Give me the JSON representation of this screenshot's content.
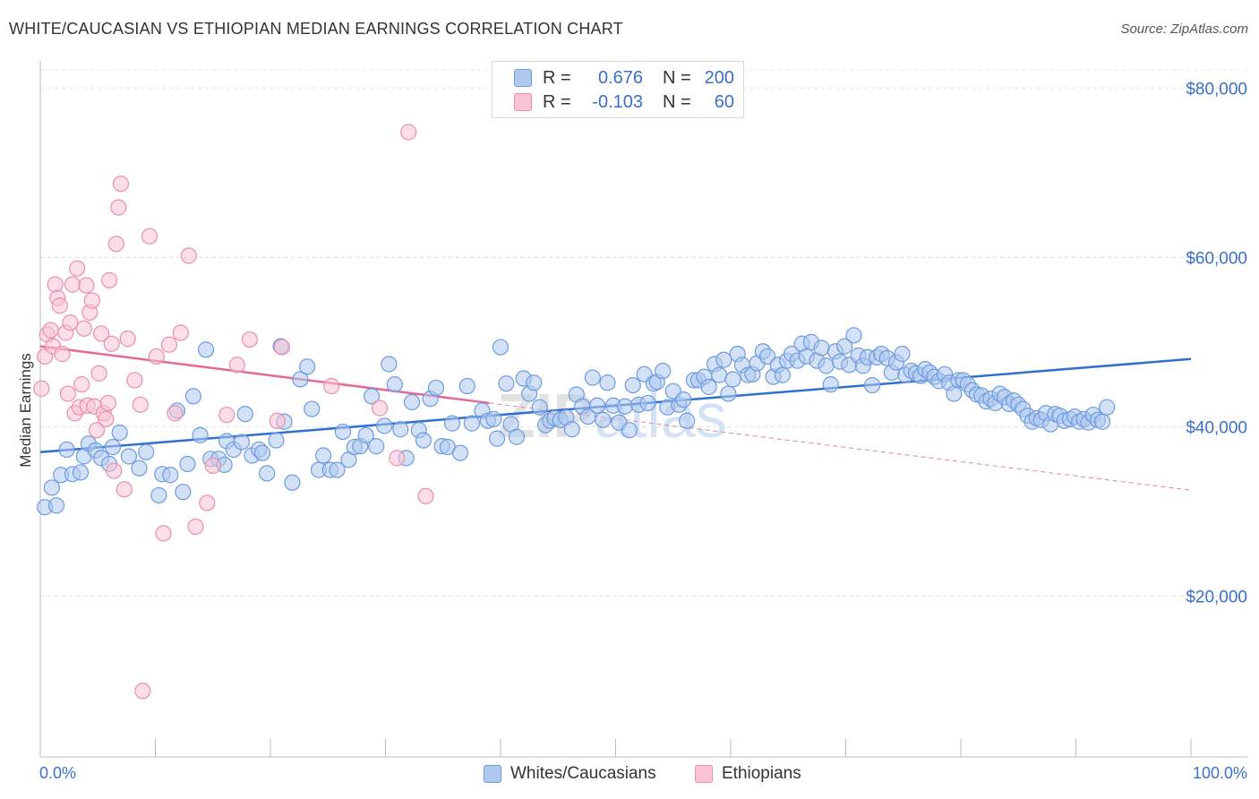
{
  "title": "WHITE/CAUCASIAN VS ETHIOPIAN MEDIAN EARNINGS CORRELATION CHART",
  "source": "Source: ZipAtlas.com",
  "watermark": "ZIPatlas",
  "legend": {
    "r_label": "R =",
    "n_label": "N =",
    "rows": [
      {
        "r": "0.676",
        "n": "200",
        "color": "#aec8ee",
        "border": "#6d9be0"
      },
      {
        "r": "-0.103",
        "n": "60",
        "color": "#f8c3d3",
        "border": "#ea8fac"
      }
    ]
  },
  "bottom_legend": [
    {
      "label": "Whites/Caucasians",
      "color": "#aec8ee",
      "border": "#6d9be0"
    },
    {
      "label": "Ethiopians",
      "color": "#f8c3d3",
      "border": "#ea8fac"
    }
  ],
  "chart_data": {
    "type": "scatter",
    "title": "WHITE/CAUCASIAN VS ETHIOPIAN MEDIAN EARNINGS CORRELATION CHART",
    "xlabel": "",
    "ylabel": "Median Earnings",
    "xlim": [
      0,
      100
    ],
    "ylim": [
      1000,
      83000
    ],
    "x_tick_labels": [
      "0.0%",
      "100.0%"
    ],
    "y_ticks": [
      20000,
      40000,
      60000,
      80000
    ],
    "y_tick_labels": [
      "$20,000",
      "$40,000",
      "$60,000",
      "$80,000"
    ],
    "grid": true,
    "legend_position": "top-center",
    "series": [
      {
        "name": "Whites/Caucasians",
        "color": "#6d9be0",
        "fill": "#aec8ee",
        "r": 0.676,
        "n": 200,
        "trend": {
          "x": [
            0,
            100
          ],
          "y": [
            37000,
            48000
          ]
        },
        "points": [
          [
            0.4,
            30500
          ],
          [
            1.4,
            30700
          ],
          [
            1.0,
            32800
          ],
          [
            1.8,
            34300
          ],
          [
            2.3,
            37300
          ],
          [
            2.8,
            34400
          ],
          [
            3.5,
            34600
          ],
          [
            3.8,
            36500
          ],
          [
            4.2,
            38000
          ],
          [
            4.8,
            37200
          ],
          [
            5.3,
            36300
          ],
          [
            6.0,
            35600
          ],
          [
            6.3,
            37600
          ],
          [
            6.9,
            39300
          ],
          [
            7.7,
            36500
          ],
          [
            8.6,
            35100
          ],
          [
            9.2,
            37000
          ],
          [
            10.3,
            31900
          ],
          [
            10.6,
            34400
          ],
          [
            11.3,
            34300
          ],
          [
            11.9,
            41900
          ],
          [
            12.4,
            32300
          ],
          [
            12.8,
            35600
          ],
          [
            13.3,
            43600
          ],
          [
            13.9,
            39000
          ],
          [
            14.4,
            49100
          ],
          [
            14.8,
            36200
          ],
          [
            15.5,
            36200
          ],
          [
            16.0,
            35500
          ],
          [
            16.2,
            38300
          ],
          [
            16.8,
            37300
          ],
          [
            17.5,
            38200
          ],
          [
            17.8,
            41500
          ],
          [
            18.4,
            36600
          ],
          [
            19.0,
            37300
          ],
          [
            19.3,
            36900
          ],
          [
            19.7,
            34500
          ],
          [
            20.5,
            38400
          ],
          [
            20.9,
            49500
          ],
          [
            21.2,
            40600
          ],
          [
            21.9,
            33400
          ],
          [
            22.6,
            45600
          ],
          [
            23.2,
            47100
          ],
          [
            23.6,
            42100
          ],
          [
            24.2,
            34900
          ],
          [
            24.6,
            36600
          ],
          [
            25.2,
            34900
          ],
          [
            25.8,
            34900
          ],
          [
            26.3,
            39400
          ],
          [
            26.8,
            36100
          ],
          [
            27.3,
            37600
          ],
          [
            27.8,
            37700
          ],
          [
            28.3,
            39000
          ],
          [
            28.8,
            43600
          ],
          [
            29.2,
            37700
          ],
          [
            29.9,
            40100
          ],
          [
            30.3,
            47400
          ],
          [
            30.8,
            45000
          ],
          [
            31.3,
            39700
          ],
          [
            31.8,
            36300
          ],
          [
            32.3,
            42900
          ],
          [
            32.9,
            39600
          ],
          [
            33.3,
            38400
          ],
          [
            33.9,
            43300
          ],
          [
            34.4,
            44600
          ],
          [
            34.9,
            37700
          ],
          [
            35.4,
            37600
          ],
          [
            35.8,
            40400
          ],
          [
            36.5,
            36900
          ],
          [
            37.1,
            44800
          ],
          [
            37.5,
            40400
          ],
          [
            38.4,
            41900
          ],
          [
            38.9,
            40700
          ],
          [
            39.4,
            40900
          ],
          [
            39.7,
            38600
          ],
          [
            40.0,
            49400
          ],
          [
            40.5,
            45100
          ],
          [
            40.9,
            40300
          ],
          [
            41.4,
            38800
          ],
          [
            42.0,
            45700
          ],
          [
            42.5,
            43900
          ],
          [
            42.9,
            45200
          ],
          [
            43.4,
            42300
          ],
          [
            43.9,
            40200
          ],
          [
            44.3,
            40700
          ],
          [
            44.7,
            41000
          ],
          [
            45.2,
            40800
          ],
          [
            45.7,
            41100
          ],
          [
            46.2,
            39700
          ],
          [
            46.6,
            43800
          ],
          [
            47.1,
            42400
          ],
          [
            47.6,
            41200
          ],
          [
            48.0,
            45800
          ],
          [
            48.4,
            42500
          ],
          [
            48.9,
            40800
          ],
          [
            49.3,
            45200
          ],
          [
            49.8,
            42500
          ],
          [
            50.3,
            40500
          ],
          [
            50.8,
            42400
          ],
          [
            51.2,
            39600
          ],
          [
            51.5,
            44900
          ],
          [
            52.0,
            42600
          ],
          [
            52.5,
            46200
          ],
          [
            52.8,
            42800
          ],
          [
            53.3,
            45100
          ],
          [
            53.6,
            45300
          ],
          [
            54.1,
            46600
          ],
          [
            54.5,
            42300
          ],
          [
            55.0,
            44200
          ],
          [
            55.5,
            42600
          ],
          [
            55.9,
            43200
          ],
          [
            56.2,
            40700
          ],
          [
            56.8,
            45500
          ],
          [
            57.2,
            45500
          ],
          [
            57.7,
            45900
          ],
          [
            58.1,
            44700
          ],
          [
            58.6,
            47400
          ],
          [
            59.0,
            46100
          ],
          [
            59.4,
            47900
          ],
          [
            59.8,
            43900
          ],
          [
            60.2,
            45600
          ],
          [
            60.6,
            48600
          ],
          [
            61.0,
            47300
          ],
          [
            61.5,
            46100
          ],
          [
            61.9,
            46200
          ],
          [
            62.3,
            47500
          ],
          [
            62.8,
            48900
          ],
          [
            63.2,
            48300
          ],
          [
            63.7,
            45900
          ],
          [
            64.1,
            47300
          ],
          [
            64.5,
            46100
          ],
          [
            64.9,
            47800
          ],
          [
            65.3,
            48600
          ],
          [
            65.8,
            47800
          ],
          [
            66.2,
            49800
          ],
          [
            66.6,
            48300
          ],
          [
            67.0,
            50000
          ],
          [
            67.5,
            47800
          ],
          [
            67.9,
            49300
          ],
          [
            68.3,
            47200
          ],
          [
            68.7,
            45000
          ],
          [
            69.1,
            48900
          ],
          [
            69.5,
            47700
          ],
          [
            69.9,
            49500
          ],
          [
            70.3,
            47300
          ],
          [
            70.7,
            50800
          ],
          [
            71.1,
            48400
          ],
          [
            71.5,
            47200
          ],
          [
            71.9,
            48200
          ],
          [
            72.3,
            44900
          ],
          [
            72.7,
            48200
          ],
          [
            73.1,
            48600
          ],
          [
            73.6,
            48100
          ],
          [
            74.0,
            46400
          ],
          [
            74.4,
            47600
          ],
          [
            74.9,
            48600
          ],
          [
            75.2,
            46100
          ],
          [
            75.7,
            46600
          ],
          [
            76.1,
            46300
          ],
          [
            76.5,
            46000
          ],
          [
            76.9,
            46800
          ],
          [
            77.3,
            46400
          ],
          [
            77.7,
            45900
          ],
          [
            78.1,
            45400
          ],
          [
            78.6,
            46200
          ],
          [
            79.0,
            45200
          ],
          [
            79.4,
            43900
          ],
          [
            79.8,
            45500
          ],
          [
            80.2,
            45500
          ],
          [
            80.6,
            45000
          ],
          [
            81.0,
            44300
          ],
          [
            81.4,
            43800
          ],
          [
            81.8,
            43700
          ],
          [
            82.2,
            43000
          ],
          [
            82.6,
            43300
          ],
          [
            83.0,
            42800
          ],
          [
            83.4,
            43900
          ],
          [
            83.8,
            43500
          ],
          [
            84.2,
            42700
          ],
          [
            84.6,
            43100
          ],
          [
            85.0,
            42600
          ],
          [
            85.4,
            42100
          ],
          [
            85.8,
            41300
          ],
          [
            86.2,
            40600
          ],
          [
            86.6,
            41000
          ],
          [
            87.0,
            40800
          ],
          [
            87.4,
            41600
          ],
          [
            87.8,
            40300
          ],
          [
            88.2,
            41500
          ],
          [
            88.6,
            41300
          ],
          [
            89.0,
            40700
          ],
          [
            89.5,
            40900
          ],
          [
            89.9,
            41200
          ],
          [
            90.3,
            40600
          ],
          [
            90.7,
            40900
          ],
          [
            91.1,
            40500
          ],
          [
            91.5,
            41400
          ],
          [
            91.9,
            40800
          ],
          [
            92.3,
            40600
          ],
          [
            92.7,
            42300
          ]
        ]
      },
      {
        "name": "Ethiopians",
        "color": "#ea8fac",
        "fill": "#f8c3d3",
        "r": -0.103,
        "n": 60,
        "trend": {
          "x": [
            0,
            39
          ],
          "y": [
            49500,
            42800
          ]
        },
        "trend_dashed": {
          "x": [
            39,
            100
          ],
          "y": [
            42800,
            32500
          ]
        },
        "points": [
          [
            0.1,
            44500
          ],
          [
            0.4,
            48300
          ],
          [
            0.6,
            50900
          ],
          [
            0.9,
            51400
          ],
          [
            1.1,
            49500
          ],
          [
            1.3,
            56800
          ],
          [
            1.5,
            55200
          ],
          [
            1.7,
            54300
          ],
          [
            1.9,
            48600
          ],
          [
            2.2,
            51100
          ],
          [
            2.4,
            43900
          ],
          [
            2.6,
            52300
          ],
          [
            2.8,
            56800
          ],
          [
            3.0,
            41600
          ],
          [
            3.2,
            58700
          ],
          [
            3.4,
            42300
          ],
          [
            3.6,
            45000
          ],
          [
            3.8,
            51600
          ],
          [
            4.0,
            56700
          ],
          [
            4.1,
            42500
          ],
          [
            4.3,
            53500
          ],
          [
            4.5,
            54900
          ],
          [
            4.7,
            42400
          ],
          [
            4.9,
            39600
          ],
          [
            5.1,
            46300
          ],
          [
            5.3,
            51000
          ],
          [
            5.5,
            41600
          ],
          [
            5.7,
            40900
          ],
          [
            5.9,
            42800
          ],
          [
            6.0,
            57300
          ],
          [
            6.2,
            49800
          ],
          [
            6.4,
            34800
          ],
          [
            6.6,
            61600
          ],
          [
            6.8,
            65900
          ],
          [
            7.0,
            68700
          ],
          [
            7.3,
            32600
          ],
          [
            7.6,
            50400
          ],
          [
            8.2,
            45500
          ],
          [
            8.7,
            42600
          ],
          [
            8.9,
            8800
          ],
          [
            9.5,
            62500
          ],
          [
            10.1,
            48300
          ],
          [
            10.7,
            27400
          ],
          [
            11.2,
            49700
          ],
          [
            11.7,
            41600
          ],
          [
            12.2,
            51100
          ],
          [
            12.9,
            60200
          ],
          [
            13.5,
            28200
          ],
          [
            14.5,
            31000
          ],
          [
            15.0,
            35400
          ],
          [
            16.2,
            41400
          ],
          [
            17.1,
            47300
          ],
          [
            18.2,
            50300
          ],
          [
            20.6,
            40700
          ],
          [
            21.0,
            49400
          ],
          [
            25.3,
            44800
          ],
          [
            29.5,
            42200
          ],
          [
            31.0,
            36300
          ],
          [
            32.0,
            74800
          ],
          [
            33.5,
            31800
          ]
        ]
      }
    ]
  }
}
